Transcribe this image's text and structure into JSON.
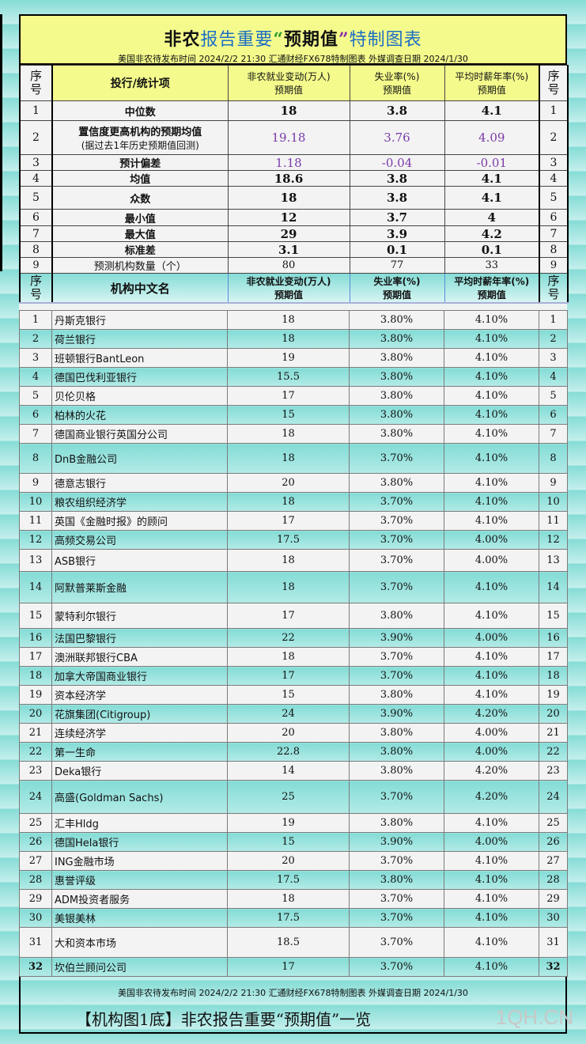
{
  "header": {
    "title_parts": {
      "p1": "非农",
      "p2": "报告重要",
      "p3": "“",
      "p4": "预期值",
      "p5": "”",
      "p6": "特制图表"
    },
    "subtitle": "美国非农待发布时间 2024/2/2 21:30   汇通财经FX678特制图表   外媒调查日期 2024/1/30"
  },
  "stats_header": {
    "idx": "序号",
    "label": "投行/统计项",
    "col1_line1": "非农就业变动(万人)",
    "col1_line2": "预期值",
    "col2_line1": "失业率(%)",
    "col2_line2": "预期值",
    "col3_line1": "平均时薪年率(%)",
    "col3_line2": "预期值"
  },
  "stats": [
    {
      "idx": "1",
      "label": "中位数",
      "sub": "",
      "nfp": "18",
      "unemp": "3.8",
      "wage": "4.1"
    },
    {
      "idx": "2",
      "label": "置信度更高机构的预期均值",
      "sub": "(据过去1年历史预期值回测)",
      "nfp": "19.18",
      "unemp": "3.76",
      "wage": "4.09"
    },
    {
      "idx": "3",
      "label": "预计偏差",
      "sub": "",
      "nfp": "1.18",
      "unemp": "-0.04",
      "wage": "-0.01"
    },
    {
      "idx": "4",
      "label": "均值",
      "sub": "",
      "nfp": "18.6",
      "unemp": "3.8",
      "wage": "4.1"
    },
    {
      "idx": "5",
      "label": "众数",
      "sub": "",
      "nfp": "18",
      "unemp": "3.8",
      "wage": "4.1"
    },
    {
      "idx": "6",
      "label": "最小值",
      "sub": "",
      "nfp": "12",
      "unemp": "3.7",
      "wage": "4"
    },
    {
      "idx": "7",
      "label": "最大值",
      "sub": "",
      "nfp": "29",
      "unemp": "3.9",
      "wage": "4.2"
    },
    {
      "idx": "8",
      "label": "标准差",
      "sub": "",
      "nfp": "3.1",
      "unemp": "0.1",
      "wage": "0.1"
    },
    {
      "idx": "9",
      "label": "预测机构数量（个）",
      "sub": "",
      "nfp": "80",
      "unemp": "77",
      "wage": "33"
    }
  ],
  "inst_header": {
    "idx": "序号",
    "label": "机构中文名",
    "col1_line1": "非农就业变动(万人)",
    "col1_line2": "预期值",
    "col2_line1": "失业率(%)",
    "col2_line2": "预期值",
    "col3_line1": "平均时薪年率(%)",
    "col3_line2": "预期值"
  },
  "institutions": [
    {
      "idx": "1",
      "name": "丹斯克银行",
      "nfp": "18",
      "unemp": "3.80%",
      "wage": "4.10%"
    },
    {
      "idx": "2",
      "name": "荷兰银行",
      "nfp": "18",
      "unemp": "3.80%",
      "wage": "4.10%"
    },
    {
      "idx": "3",
      "name": "班顿银行BantLeon",
      "nfp": "19",
      "unemp": "3.80%",
      "wage": "4.10%"
    },
    {
      "idx": "4",
      "name": "德国巴伐利亚银行",
      "nfp": "15.5",
      "unemp": "3.80%",
      "wage": "4.10%"
    },
    {
      "idx": "5",
      "name": "贝伦贝格",
      "nfp": "17",
      "unemp": "3.80%",
      "wage": "4.10%"
    },
    {
      "idx": "6",
      "name": "柏林的火花",
      "nfp": "15",
      "unemp": "3.80%",
      "wage": "4.10%"
    },
    {
      "idx": "7",
      "name": "德国商业银行英国分公司",
      "nfp": "18",
      "unemp": "3.80%",
      "wage": "4.10%"
    },
    {
      "idx": "8",
      "name": "DnB金融公司",
      "nfp": "18",
      "unemp": "3.70%",
      "wage": "4.10%"
    },
    {
      "idx": "9",
      "name": "德意志银行",
      "nfp": "20",
      "unemp": "3.80%",
      "wage": "4.10%"
    },
    {
      "idx": "10",
      "name": "粮农组织经济学",
      "nfp": "18",
      "unemp": "3.70%",
      "wage": "4.10%"
    },
    {
      "idx": "11",
      "name": "英国《金融时报》的顾问",
      "nfp": "17",
      "unemp": "3.70%",
      "wage": "4.10%"
    },
    {
      "idx": "12",
      "name": "高频交易公司",
      "nfp": "17.5",
      "unemp": "3.70%",
      "wage": "4.00%"
    },
    {
      "idx": "13",
      "name": "ASB银行",
      "nfp": "18",
      "unemp": "3.70%",
      "wage": "4.00%"
    },
    {
      "idx": "14",
      "name": "阿默普莱斯金融",
      "nfp": "18",
      "unemp": "3.70%",
      "wage": "4.10%"
    },
    {
      "idx": "15",
      "name": "蒙特利尔银行",
      "nfp": "17",
      "unemp": "3.80%",
      "wage": "4.10%"
    },
    {
      "idx": "16",
      "name": "法国巴黎银行",
      "nfp": "22",
      "unemp": "3.90%",
      "wage": "4.00%"
    },
    {
      "idx": "17",
      "name": "澳洲联邦银行CBA",
      "nfp": "18",
      "unemp": "3.70%",
      "wage": "4.10%"
    },
    {
      "idx": "18",
      "name": "加拿大帝国商业银行",
      "nfp": "17",
      "unemp": "3.70%",
      "wage": "4.10%"
    },
    {
      "idx": "19",
      "name": "资本经济学",
      "nfp": "15",
      "unemp": "3.80%",
      "wage": "4.10%"
    },
    {
      "idx": "20",
      "name": "花旗集团(Citigroup)",
      "nfp": "24",
      "unemp": "3.90%",
      "wage": "4.20%"
    },
    {
      "idx": "21",
      "name": "连续经济学",
      "nfp": "20",
      "unemp": "3.80%",
      "wage": "4.00%"
    },
    {
      "idx": "22",
      "name": "第一生命",
      "nfp": "22.8",
      "unemp": "3.80%",
      "wage": "4.00%"
    },
    {
      "idx": "23",
      "name": "Deka银行",
      "nfp": "14",
      "unemp": "3.80%",
      "wage": "4.20%"
    },
    {
      "idx": "24",
      "name": "高盛(Goldman Sachs)",
      "nfp": "25",
      "unemp": "3.70%",
      "wage": "4.20%"
    },
    {
      "idx": "25",
      "name": "汇丰Hldg",
      "nfp": "19",
      "unemp": "3.80%",
      "wage": "4.10%"
    },
    {
      "idx": "26",
      "name": "德国Hela银行",
      "nfp": "15",
      "unemp": "3.90%",
      "wage": "4.00%"
    },
    {
      "idx": "27",
      "name": "ING金融市场",
      "nfp": "20",
      "unemp": "3.70%",
      "wage": "4.10%"
    },
    {
      "idx": "28",
      "name": "惠誉评级",
      "nfp": "17.5",
      "unemp": "3.80%",
      "wage": "4.10%"
    },
    {
      "idx": "29",
      "name": "ADM投资者服务",
      "nfp": "18",
      "unemp": "3.70%",
      "wage": "4.10%"
    },
    {
      "idx": "30",
      "name": "美银美林",
      "nfp": "17.5",
      "unemp": "3.70%",
      "wage": "4.10%"
    },
    {
      "idx": "31",
      "name": "大和资本市场",
      "nfp": "18.5",
      "unemp": "3.70%",
      "wage": "4.10%"
    },
    {
      "idx": "32",
      "name": "坎伯兰顾问公司",
      "nfp": "17",
      "unemp": "3.70%",
      "wage": "4.10%"
    }
  ],
  "footer": {
    "subtitle": "美国非农待发布时间 2024/2/2 21:30   汇通财经FX678特制图表   外媒调查日期 2024/1/30",
    "title": "【机构图1底】非农报告重要“预期值”一览",
    "watermark": "1QH.CN"
  },
  "colors": {
    "header_yellow": "#f4fb8c",
    "teal_row": "#84dcd6",
    "gray_row": "#f3f3f3",
    "title_blue": "#1d6fc4",
    "highlight_purple": "#7a3aa8"
  }
}
